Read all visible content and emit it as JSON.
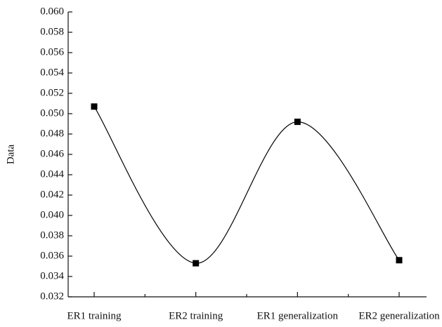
{
  "chart_data": {
    "type": "line",
    "y_label": "Data",
    "categories": [
      "ER1 training",
      "ER2 training",
      "ER1 generalization",
      "ER2 generalization"
    ],
    "series": [
      {
        "name": "Data",
        "color": "#000000",
        "values": [
          0.0507,
          0.0353,
          0.0492,
          0.0356
        ]
      }
    ],
    "smooth": true,
    "marker": "square",
    "ylim": [
      0.032,
      0.06
    ],
    "yticks": [
      0.032,
      0.034,
      0.036,
      0.038,
      {
        "value": 0.04,
        "label": "0.040"
      },
      0.042,
      0.044,
      0.046,
      0.048,
      {
        "value": 0.05,
        "label": "0.050"
      },
      0.052,
      0.054,
      0.056,
      0.058,
      {
        "value": 0.06,
        "label": "0.060"
      }
    ],
    "grid": false
  }
}
